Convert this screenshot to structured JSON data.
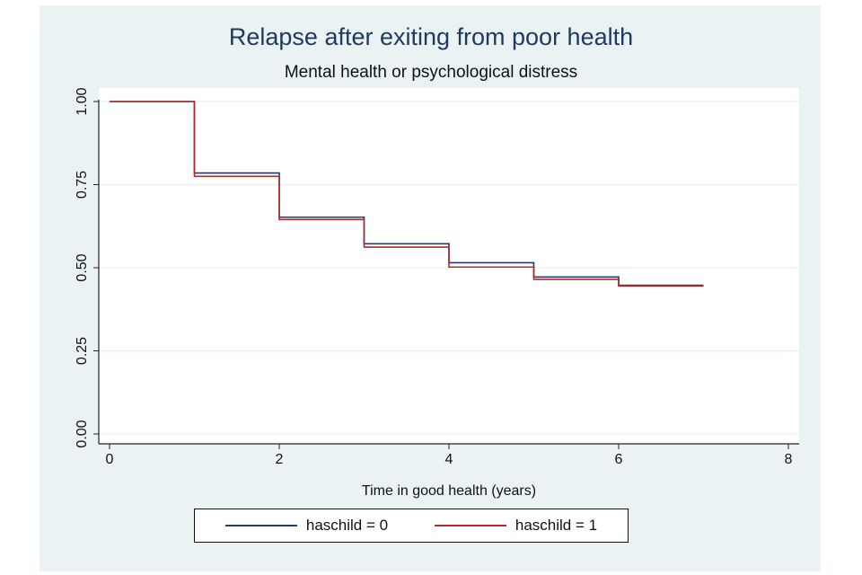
{
  "chart_data": {
    "type": "line",
    "step": true,
    "title": "Relapse after exiting from poor health",
    "subtitle": "Mental health or psychological distress",
    "xlabel": "Time in good health (years)",
    "ylabel": "",
    "xlim": [
      0,
      8
    ],
    "ylim": [
      0,
      1
    ],
    "xticks": [
      0,
      2,
      4,
      6,
      8
    ],
    "yticks": [
      0,
      0.25,
      0.5,
      0.75,
      1
    ],
    "ytick_labels": [
      "0.00",
      "0.25",
      "0.50",
      "0.75",
      "1.00"
    ],
    "grid": true,
    "legend_position": "bottom",
    "series": [
      {
        "name": "haschild = 0",
        "color": "#1f3b73",
        "x": [
          0,
          1,
          2,
          3,
          4,
          5,
          6,
          7
        ],
        "y": [
          1.0,
          0.785,
          0.652,
          0.572,
          0.515,
          0.472,
          0.447,
          0.447
        ]
      },
      {
        "name": "haschild = 1",
        "color": "#b22a2a",
        "x": [
          0,
          1,
          2,
          3,
          4,
          5,
          6,
          7
        ],
        "y": [
          1.0,
          0.775,
          0.645,
          0.562,
          0.502,
          0.465,
          0.445,
          0.445
        ]
      }
    ]
  }
}
